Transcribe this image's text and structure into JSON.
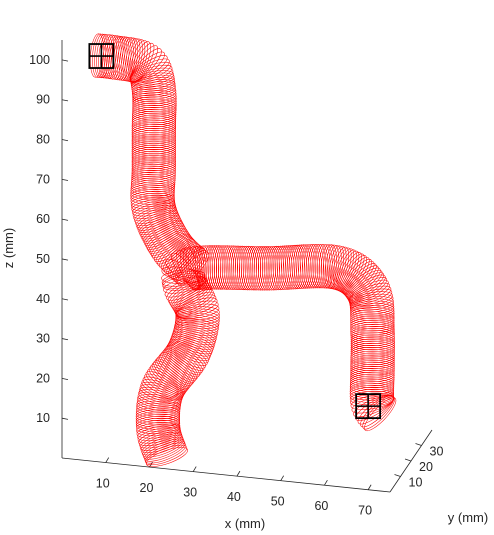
{
  "chart_data": {
    "type": "line3d",
    "title": "",
    "xlabel": "x (mm)",
    "ylabel": "y (mm)",
    "zlabel": "z (mm)",
    "xlim": [
      0,
      75
    ],
    "ylim": [
      0,
      40
    ],
    "zlim": [
      0,
      105
    ],
    "xticks": [
      10,
      20,
      30,
      40,
      50,
      60,
      70
    ],
    "yticks": [
      10,
      20,
      30
    ],
    "zticks": [
      10,
      20,
      30,
      40,
      50,
      60,
      70,
      80,
      90,
      100
    ],
    "grid": false,
    "series": [
      {
        "color": "#ff0000",
        "style": "rings",
        "tube_diameter_mm": 8,
        "centerline": [
          {
            "x": 24,
            "y": 20,
            "z": 3
          },
          {
            "x": 22,
            "y": 20,
            "z": 10
          },
          {
            "x": 23,
            "y": 20,
            "z": 20
          },
          {
            "x": 29,
            "y": 20,
            "z": 30
          },
          {
            "x": 31,
            "y": 20,
            "z": 40
          },
          {
            "x": 28,
            "y": 20,
            "z": 47
          },
          {
            "x": 30,
            "y": 20,
            "z": 51
          },
          {
            "x": 47,
            "y": 20,
            "z": 53
          },
          {
            "x": 63,
            "y": 20,
            "z": 55
          },
          {
            "x": 70,
            "y": 20,
            "z": 50
          },
          {
            "x": 71,
            "y": 20,
            "z": 40
          },
          {
            "x": 71,
            "y": 20,
            "z": 30
          },
          {
            "x": 71,
            "y": 20,
            "z": 22
          },
          {
            "x": 73,
            "y": 20,
            "z": 19
          }
        ]
      },
      {
        "color": "#ff0000",
        "style": "rings",
        "tube_diameter_mm": 8,
        "centerline": [
          {
            "x": 30,
            "y": 20,
            "z": 51
          },
          {
            "x": 25,
            "y": 20,
            "z": 56
          },
          {
            "x": 21,
            "y": 20,
            "z": 65
          },
          {
            "x": 21,
            "y": 20,
            "z": 75
          },
          {
            "x": 21,
            "y": 20,
            "z": 85
          },
          {
            "x": 21,
            "y": 20,
            "z": 95
          },
          {
            "x": 19,
            "y": 20,
            "z": 101
          },
          {
            "x": 12,
            "y": 20,
            "z": 102
          },
          {
            "x": 8,
            "y": 20,
            "z": 102
          }
        ]
      }
    ],
    "markers": [
      {
        "type": "grid-square",
        "x": 9,
        "y": 20,
        "z": 102,
        "color": "#000000"
      },
      {
        "type": "grid-square",
        "x": 70,
        "y": 20,
        "z": 21,
        "color": "#000000"
      }
    ]
  }
}
